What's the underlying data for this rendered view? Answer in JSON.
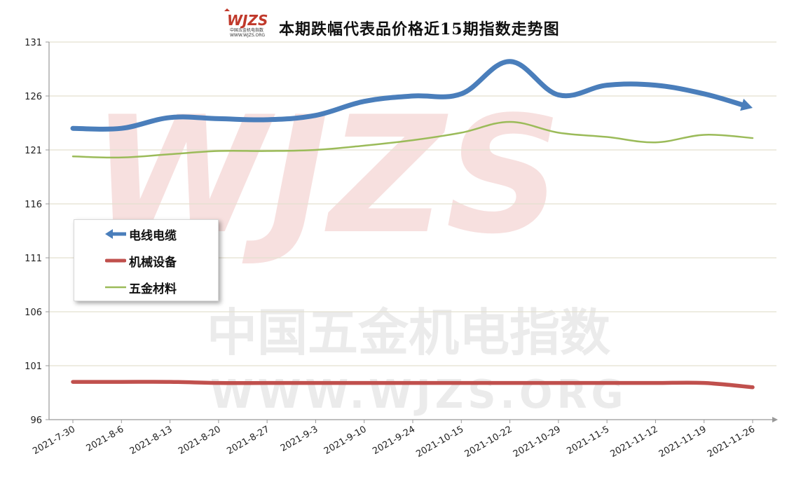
{
  "header": {
    "title": "本期跌幅代表品价格近15期指数走势图",
    "logo_text": "WJZS",
    "logo_subtext": "中国五金机电指数",
    "logo_url": "WWW.WJZS.ORG"
  },
  "watermark": {
    "line1": "中国五金机电指数",
    "line2": "WWW.WJZS.ORG",
    "big": "WJZS"
  },
  "colors": {
    "cable": "#4a7ebb",
    "machinery": "#c0504d",
    "hardware": "#9bbb59",
    "grid": "#e4e0cf",
    "axis": "#999999"
  },
  "chart_data": {
    "type": "line",
    "title": "本期跌幅代表品价格近15期指数走势图",
    "xlabel": "",
    "ylabel": "",
    "ylim": [
      96,
      131
    ],
    "yticks": [
      96,
      101,
      106,
      111,
      116,
      121,
      126,
      131
    ],
    "grid": true,
    "legend_position": "left-middle",
    "categories": [
      "2021-7-30",
      "2021-8-6",
      "2021-8-13",
      "2021-8-20",
      "2021-8-27",
      "2021-9-3",
      "2021-9-10",
      "2021-9-24",
      "2021-10-15",
      "2021-10-22",
      "2021-10-29",
      "2021-11-5",
      "2021-11-12",
      "2021-11-19",
      "2021-11-26"
    ],
    "series": [
      {
        "name": "电线电缆",
        "color": "#4a7ebb",
        "values": [
          123.0,
          123.0,
          124.0,
          123.9,
          123.8,
          124.2,
          125.5,
          126.0,
          126.2,
          129.2,
          126.1,
          127.0,
          127.0,
          126.2,
          124.9
        ]
      },
      {
        "name": "机械设备",
        "color": "#c0504d",
        "values": [
          99.5,
          99.5,
          99.5,
          99.4,
          99.4,
          99.4,
          99.4,
          99.4,
          99.4,
          99.4,
          99.4,
          99.4,
          99.4,
          99.4,
          99.0
        ]
      },
      {
        "name": "五金材料",
        "color": "#9bbb59",
        "values": [
          120.4,
          120.3,
          120.6,
          120.9,
          120.9,
          121.0,
          121.4,
          121.9,
          122.6,
          123.6,
          122.6,
          122.2,
          121.7,
          122.4,
          122.1
        ]
      }
    ]
  }
}
